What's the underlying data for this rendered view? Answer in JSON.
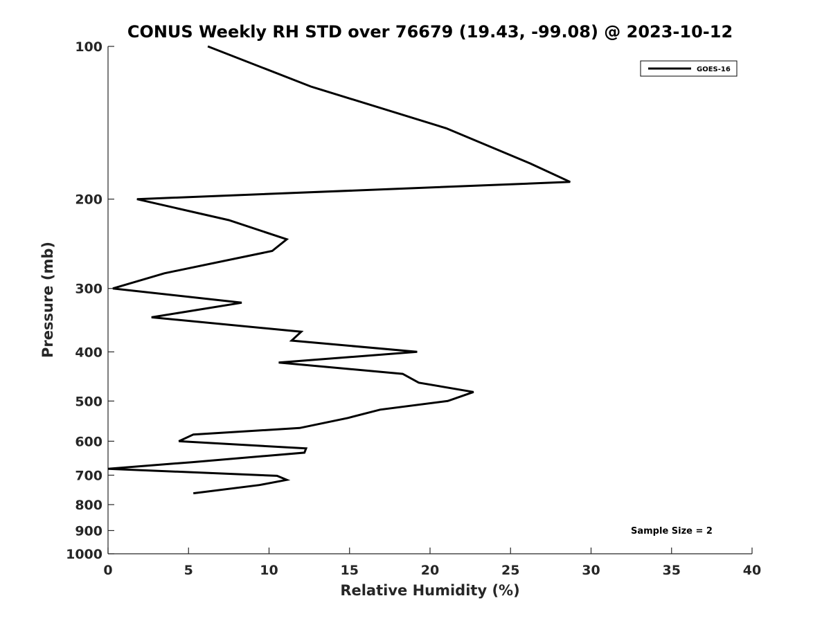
{
  "chart_data": {
    "type": "line",
    "title": "CONUS Weekly RH STD over 76679 (19.43, -99.08) @ 2023-10-12",
    "xlabel": "Relative Humidity (%)",
    "ylabel": "Pressure (mb)",
    "xlim": [
      0,
      40
    ],
    "ylim": [
      100,
      1000
    ],
    "y_scale": "log",
    "y_reversed": true,
    "grid": false,
    "legend_position": "top-right",
    "x_ticks": [
      0,
      5,
      10,
      15,
      20,
      25,
      30,
      35,
      40
    ],
    "x_tick_labels": [
      "0",
      "5",
      "10",
      "15",
      "20",
      "25",
      "30",
      "35",
      "40"
    ],
    "y_ticks": [
      100,
      200,
      300,
      400,
      500,
      600,
      700,
      800,
      900,
      1000
    ],
    "y_tick_labels": [
      "100",
      "200",
      "300",
      "400",
      "500",
      "600",
      "700",
      "800",
      "900",
      "1000"
    ],
    "series": [
      {
        "name": "GOES-16",
        "color": "#000000",
        "x": [
          6.2,
          12.6,
          21.0,
          26.2,
          28.7,
          1.8,
          7.5,
          11.1,
          10.2,
          3.5,
          0.3,
          8.3,
          2.7,
          12.0,
          11.4,
          19.2,
          10.6,
          18.3,
          19.3,
          22.7,
          21.1,
          16.9,
          14.9,
          11.9,
          5.3,
          4.4,
          12.3,
          12.2,
          5.2,
          0.0,
          10.5,
          11.1,
          9.4,
          5.3
        ],
        "y": [
          100,
          120,
          145,
          170,
          185,
          200,
          220,
          240,
          253,
          280,
          300,
          320,
          342,
          365,
          380,
          400,
          420,
          442,
          460,
          480,
          500,
          520,
          540,
          565,
          582,
          600,
          620,
          632,
          660,
          680,
          702,
          715,
          732,
          760
        ]
      }
    ],
    "annotations": [
      {
        "text": "Sample Size = 2",
        "position": "bottom-right"
      }
    ]
  }
}
